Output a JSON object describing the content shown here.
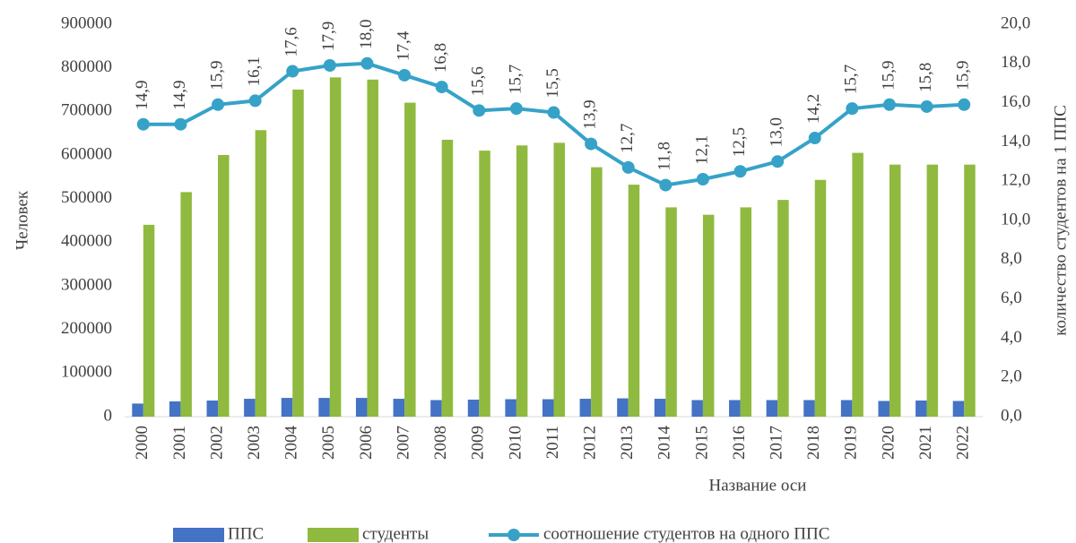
{
  "chart_data": {
    "type": "bar",
    "x_label": "Название оси",
    "y_label": "Человек",
    "y2_label": "количество студентов на 1 ППС",
    "categories": [
      "2000",
      "2001",
      "2002",
      "2003",
      "2004",
      "2005",
      "2006",
      "2007",
      "2008",
      "2009",
      "2010",
      "2011",
      "2012",
      "2013",
      "2014",
      "2015",
      "2016",
      "2017",
      "2018",
      "2019",
      "2020",
      "2021",
      "2022"
    ],
    "series": [
      {
        "name": "ППС",
        "type": "bar",
        "color": "#4472c4",
        "values": [
          30000,
          35000,
          37000,
          41000,
          43000,
          43000,
          43000,
          41000,
          38000,
          39000,
          40000,
          40000,
          41000,
          42000,
          41000,
          38000,
          38000,
          38000,
          38000,
          38000,
          36000,
          37000,
          36000
        ]
      },
      {
        "name": "студенты",
        "type": "bar",
        "color": "#8fba3f",
        "values": [
          440000,
          515000,
          600000,
          657000,
          750000,
          778000,
          773000,
          720000,
          635000,
          610000,
          622000,
          628000,
          572000,
          532000,
          480000,
          463000,
          480000,
          497000,
          543000,
          605000,
          578000,
          578000,
          578000
        ]
      },
      {
        "name": "соотношение студентов на одного ППС",
        "type": "line",
        "axis": "y2",
        "color": "#36a2c8",
        "values": [
          14.9,
          14.9,
          15.9,
          16.1,
          17.6,
          17.9,
          18.0,
          17.4,
          16.8,
          15.6,
          15.7,
          15.5,
          13.9,
          12.7,
          11.8,
          12.1,
          12.5,
          13.0,
          14.2,
          15.7,
          15.9,
          15.8,
          15.9
        ],
        "value_labels": [
          "14,9",
          "14,9",
          "15,9",
          "16,1",
          "17,6",
          "17,9",
          "18,0",
          "17,4",
          "16,8",
          "15,6",
          "15,7",
          "15,5",
          "13,9",
          "12,7",
          "11,8",
          "12,1",
          "12,5",
          "13,0",
          "14,2",
          "15,7",
          "15,9",
          "15,8",
          "15,9"
        ]
      }
    ],
    "ylim": [
      0,
      900000
    ],
    "yticks": [
      0,
      100000,
      200000,
      300000,
      400000,
      500000,
      600000,
      700000,
      800000,
      900000
    ],
    "y2lim": [
      0,
      20
    ],
    "y2ticks": [
      {
        "value": 0,
        "label": "0,0"
      },
      {
        "value": 2,
        "label": "2,0"
      },
      {
        "value": 4,
        "label": "4,0"
      },
      {
        "value": 6,
        "label": "6,0"
      },
      {
        "value": 8,
        "label": "8,0"
      },
      {
        "value": 10,
        "label": "10,0"
      },
      {
        "value": 12,
        "label": "12,0"
      },
      {
        "value": 14,
        "label": "14,0"
      },
      {
        "value": 16,
        "label": "16,0"
      },
      {
        "value": 18,
        "label": "18,0"
      },
      {
        "value": 20,
        "label": "20,0"
      }
    ],
    "grid": false,
    "legend": "bottom"
  }
}
